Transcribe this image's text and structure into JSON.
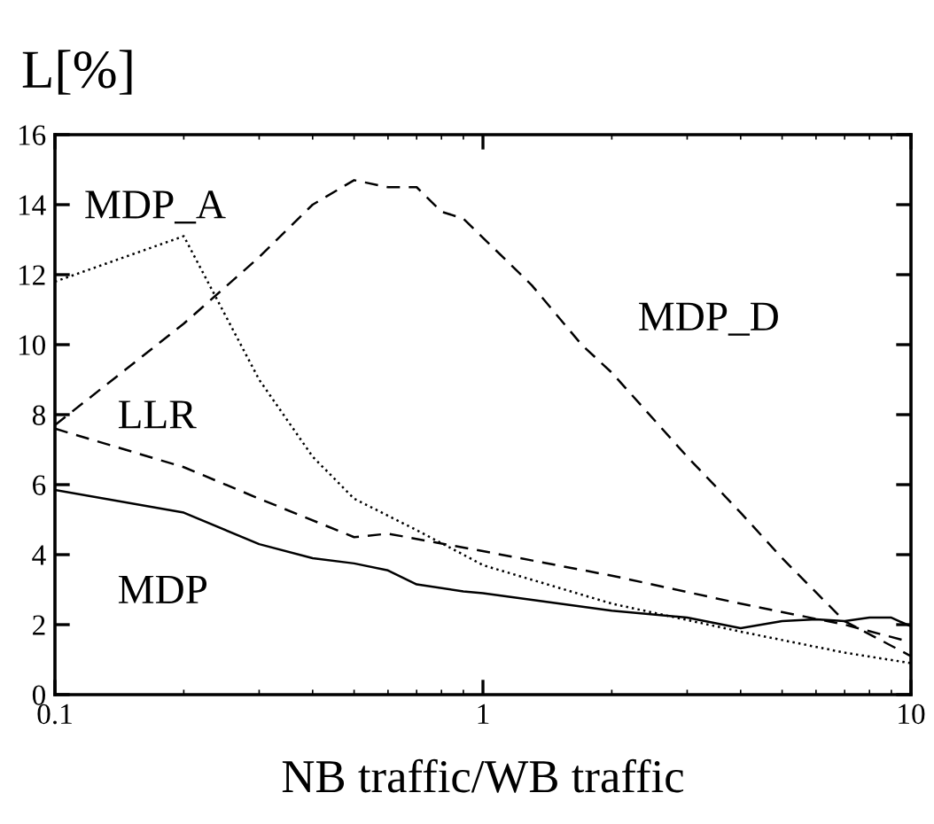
{
  "chart_data": {
    "type": "line",
    "xlabel": "NB traffic/WB traffic",
    "ylabel": "L[%]",
    "log": "x",
    "xlim": [
      0.1,
      10
    ],
    "xticks": [
      0.1,
      1,
      10
    ],
    "ylim": [
      0,
      16
    ],
    "yticks": [
      0,
      2,
      4,
      6,
      8,
      10,
      12,
      14,
      16
    ],
    "grid": false,
    "legend": false,
    "marker": "none",
    "series": [
      {
        "name": "MDP_A",
        "color": "#000000",
        "line_style": "dotted",
        "x": [
          0.1,
          0.2,
          0.3,
          0.4,
          0.5,
          0.7,
          0.9,
          1,
          2,
          4,
          7,
          10
        ],
        "values": [
          11.8,
          13.1,
          9.0,
          6.8,
          5.6,
          4.7,
          4.0,
          3.7,
          2.6,
          1.8,
          1.2,
          0.9
        ]
      },
      {
        "name": "MDP_D",
        "color": "#000000",
        "line_style": "dashed",
        "x": [
          0.1,
          0.2,
          0.3,
          0.4,
          0.5,
          0.6,
          0.7,
          0.8,
          0.9,
          1.3,
          1.7,
          2,
          3,
          4,
          5,
          7,
          10
        ],
        "values": [
          7.7,
          10.6,
          12.5,
          14.0,
          14.7,
          14.5,
          14.5,
          13.8,
          13.6,
          11.7,
          10.0,
          9.2,
          6.8,
          5.2,
          3.9,
          2.1,
          1.1
        ]
      },
      {
        "name": "LLR",
        "color": "#000000",
        "line_style": "dashed",
        "x": [
          0.1,
          0.2,
          0.3,
          0.5,
          0.6,
          1,
          2,
          4,
          7,
          10
        ],
        "values": [
          7.6,
          6.5,
          5.6,
          4.5,
          4.6,
          4.1,
          3.4,
          2.6,
          2.0,
          1.5
        ]
      },
      {
        "name": "MDP",
        "color": "#000000",
        "line_style": "solid",
        "x": [
          0.1,
          0.2,
          0.3,
          0.4,
          0.5,
          0.6,
          0.7,
          0.9,
          1,
          2,
          3,
          4,
          5,
          6,
          7,
          8,
          9,
          10
        ],
        "values": [
          5.85,
          5.2,
          4.3,
          3.9,
          3.75,
          3.55,
          3.15,
          2.95,
          2.9,
          2.4,
          2.2,
          1.9,
          2.1,
          2.15,
          2.1,
          2.2,
          2.2,
          1.95
        ]
      }
    ]
  }
}
